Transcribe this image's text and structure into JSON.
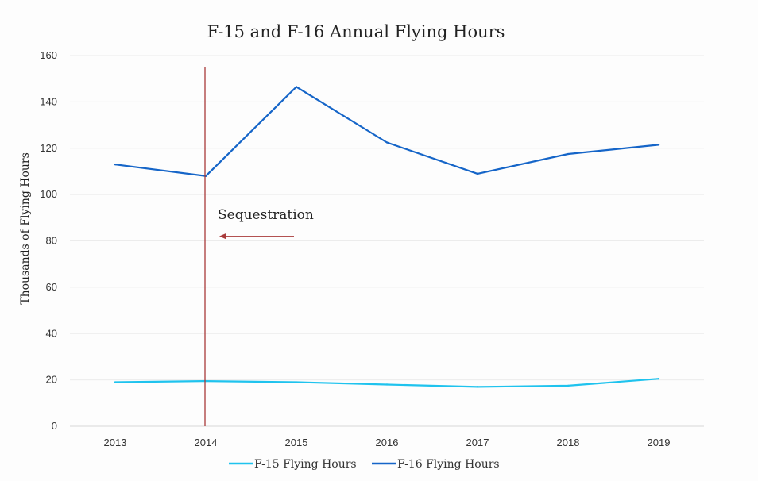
{
  "chart_data": {
    "type": "line",
    "title": "F-15 and F-16 Annual Flying Hours",
    "xlabel": "",
    "ylabel": "Thousands of Flying Hours",
    "x": [
      "2013",
      "2014",
      "2015",
      "2016",
      "2017",
      "2018",
      "2019"
    ],
    "ylim": [
      0,
      160
    ],
    "yticks": [
      0,
      20,
      40,
      60,
      80,
      100,
      120,
      140,
      160
    ],
    "grid": true,
    "legend": "bottom",
    "series": [
      {
        "name": "F-15 Flying Hours",
        "color": "#1fc3ee",
        "values": [
          19,
          19.5,
          19,
          18,
          17,
          17.5,
          20.5
        ]
      },
      {
        "name": "F-16 Flying Hours",
        "color": "#1565c8",
        "values": [
          113,
          108,
          146.5,
          122.5,
          109,
          117.5,
          121.5
        ]
      }
    ],
    "annotations": [
      {
        "text": "Sequestration",
        "x": "2014",
        "type": "vertical-line",
        "color": "#a83a3a",
        "arrow": "left"
      }
    ]
  }
}
